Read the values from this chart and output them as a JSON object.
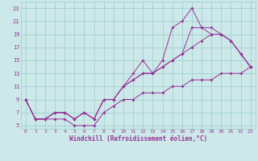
{
  "xlabel": "Windchill (Refroidissement éolien,°C)",
  "bg_color": "#cce8e8",
  "grid_color": "#99cccc",
  "line_color": "#993399",
  "xlim": [
    -0.5,
    23.5
  ],
  "ylim": [
    4.5,
    24
  ],
  "xticks": [
    0,
    1,
    2,
    3,
    4,
    5,
    6,
    7,
    8,
    9,
    10,
    11,
    12,
    13,
    14,
    15,
    16,
    17,
    18,
    19,
    20,
    21,
    22,
    23
  ],
  "yticks": [
    5,
    7,
    9,
    11,
    13,
    15,
    17,
    19,
    21,
    23
  ],
  "series": [
    [
      9,
      6,
      6,
      7,
      7,
      6,
      7,
      6,
      9,
      9,
      11,
      13,
      15,
      13,
      15,
      20,
      21,
      23,
      20,
      19,
      19,
      18,
      16,
      14
    ],
    [
      9,
      6,
      6,
      7,
      7,
      6,
      7,
      6,
      9,
      9,
      11,
      12,
      13,
      13,
      14,
      15,
      16,
      20,
      20,
      20,
      19,
      18,
      16,
      14
    ],
    [
      9,
      6,
      6,
      7,
      7,
      6,
      7,
      6,
      9,
      9,
      11,
      12,
      13,
      13,
      14,
      15,
      16,
      17,
      18,
      19,
      19,
      18,
      16,
      14
    ],
    [
      9,
      6,
      6,
      6,
      6,
      5,
      5,
      5,
      7,
      8,
      9,
      9,
      10,
      10,
      10,
      11,
      11,
      12,
      12,
      12,
      13,
      13,
      13,
      14
    ]
  ]
}
